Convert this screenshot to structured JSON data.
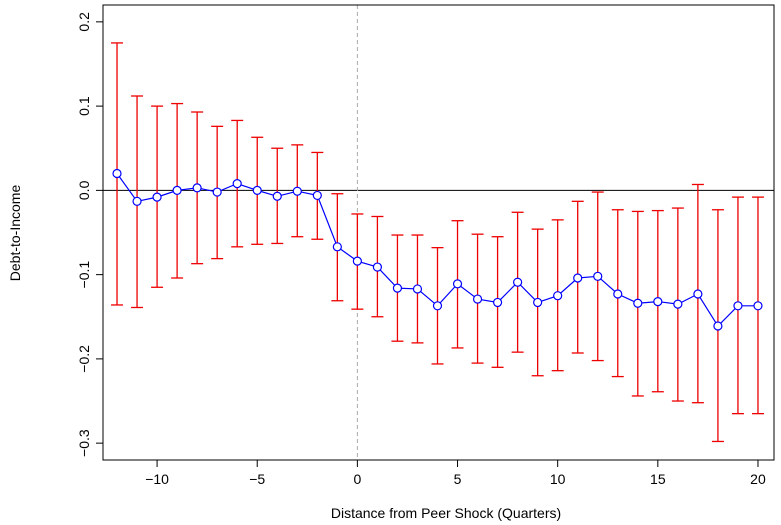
{
  "chart_data": {
    "type": "scatter",
    "title": "",
    "xlabel": "Distance from Peer Shock (Quarters)",
    "ylabel": "Debt-to-Income",
    "xlim": [
      -12.7,
      20.8
    ],
    "ylim": [
      -0.32,
      0.22
    ],
    "x_ticks": [
      -10,
      -5,
      0,
      5,
      10,
      15,
      20
    ],
    "x_tick_labels": [
      "−10",
      "−5",
      "0",
      "5",
      "10",
      "15",
      "20"
    ],
    "y_ticks": [
      -0.3,
      -0.2,
      -0.1,
      0.0,
      0.1,
      0.2
    ],
    "y_tick_labels": [
      "−0.3",
      "−0.2",
      "−0.1",
      "0.0",
      "0.1",
      "0.2"
    ],
    "reference_lines": {
      "horizontal_y": 0,
      "vertical_x": 0
    },
    "colors": {
      "line": "#0000ff",
      "points": "#0000ff",
      "error_bars": "#ee0000",
      "zero_line": "#000000",
      "shock_line": "#aaaaaa"
    },
    "series": [
      {
        "x": [
          -12,
          -11,
          -10,
          -9,
          -8,
          -7,
          -6,
          -5,
          -4,
          -3,
          -2,
          -1,
          0,
          1,
          2,
          3,
          4,
          5,
          6,
          7,
          8,
          9,
          10,
          11,
          12,
          13,
          14,
          15,
          16,
          17,
          18,
          19,
          20
        ],
        "y": [
          0.02,
          -0.013,
          -0.008,
          0.0,
          0.003,
          -0.002,
          0.008,
          0.0,
          -0.007,
          -0.001,
          -0.006,
          -0.067,
          -0.084,
          -0.091,
          -0.116,
          -0.117,
          -0.137,
          -0.111,
          -0.129,
          -0.133,
          -0.109,
          -0.133,
          -0.125,
          -0.104,
          -0.102,
          -0.123,
          -0.134,
          -0.132,
          -0.135,
          -0.123,
          -0.161,
          -0.137,
          -0.137
        ],
        "lower": [
          -0.136,
          -0.139,
          -0.115,
          -0.104,
          -0.087,
          -0.081,
          -0.067,
          -0.064,
          -0.063,
          -0.055,
          -0.058,
          -0.131,
          -0.141,
          -0.15,
          -0.179,
          -0.181,
          -0.206,
          -0.187,
          -0.205,
          -0.21,
          -0.192,
          -0.22,
          -0.214,
          -0.193,
          -0.202,
          -0.221,
          -0.244,
          -0.239,
          -0.25,
          -0.252,
          -0.298,
          -0.265,
          -0.265
        ],
        "upper": [
          0.175,
          0.112,
          0.1,
          0.103,
          0.093,
          0.076,
          0.083,
          0.063,
          0.05,
          0.054,
          0.045,
          -0.004,
          -0.028,
          -0.031,
          -0.053,
          -0.053,
          -0.068,
          -0.036,
          -0.052,
          -0.055,
          -0.026,
          -0.046,
          -0.035,
          -0.013,
          -0.002,
          -0.023,
          -0.025,
          -0.024,
          -0.021,
          0.007,
          -0.023,
          -0.008,
          -0.008
        ]
      }
    ]
  }
}
